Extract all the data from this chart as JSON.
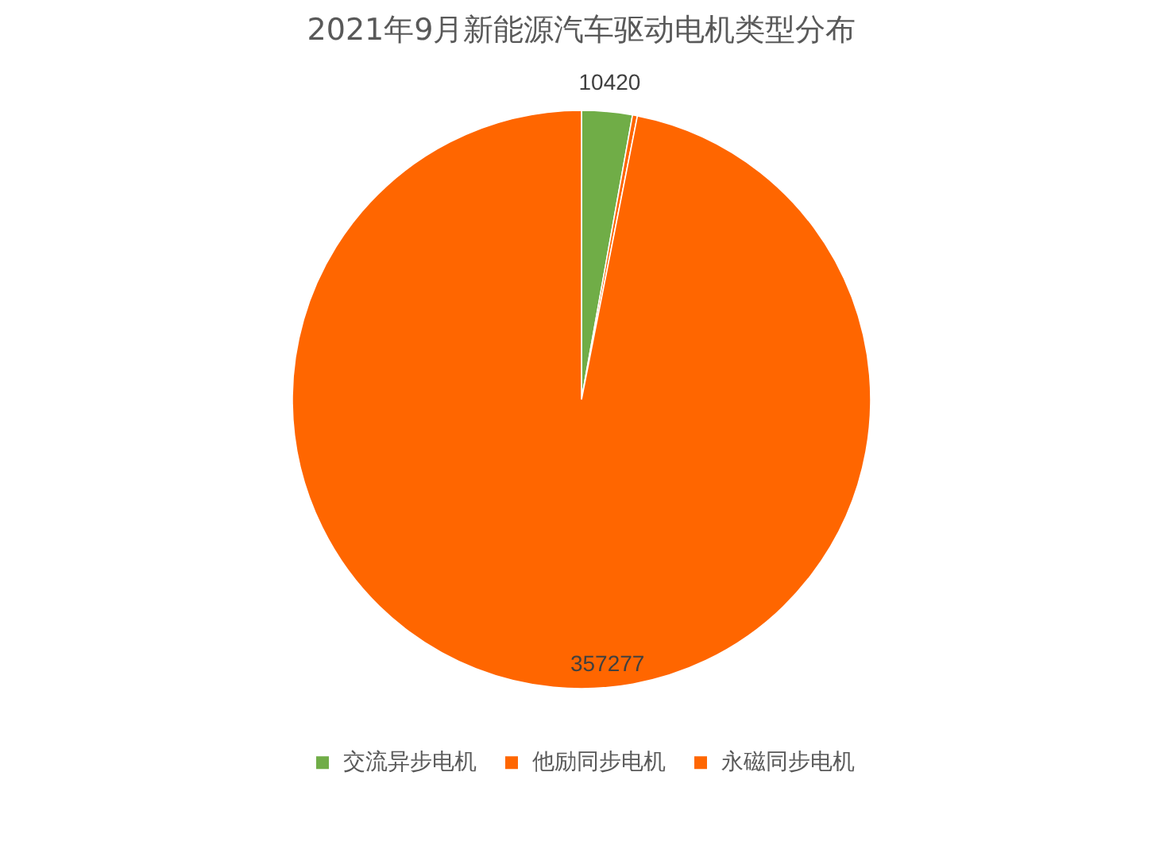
{
  "chart_data": {
    "type": "pie",
    "title": "2021年9月新能源汽车驱动电机类型分布",
    "categories": [
      "交流异步电机",
      "他励同步电机",
      "永磁同步电机"
    ],
    "values": [
      10420,
      1000,
      357277
    ],
    "colors": [
      "#70ad47",
      "#ff6600",
      "#ff6600"
    ],
    "value_labels": [
      "10420",
      null,
      "357277"
    ],
    "legend": "bottom"
  }
}
